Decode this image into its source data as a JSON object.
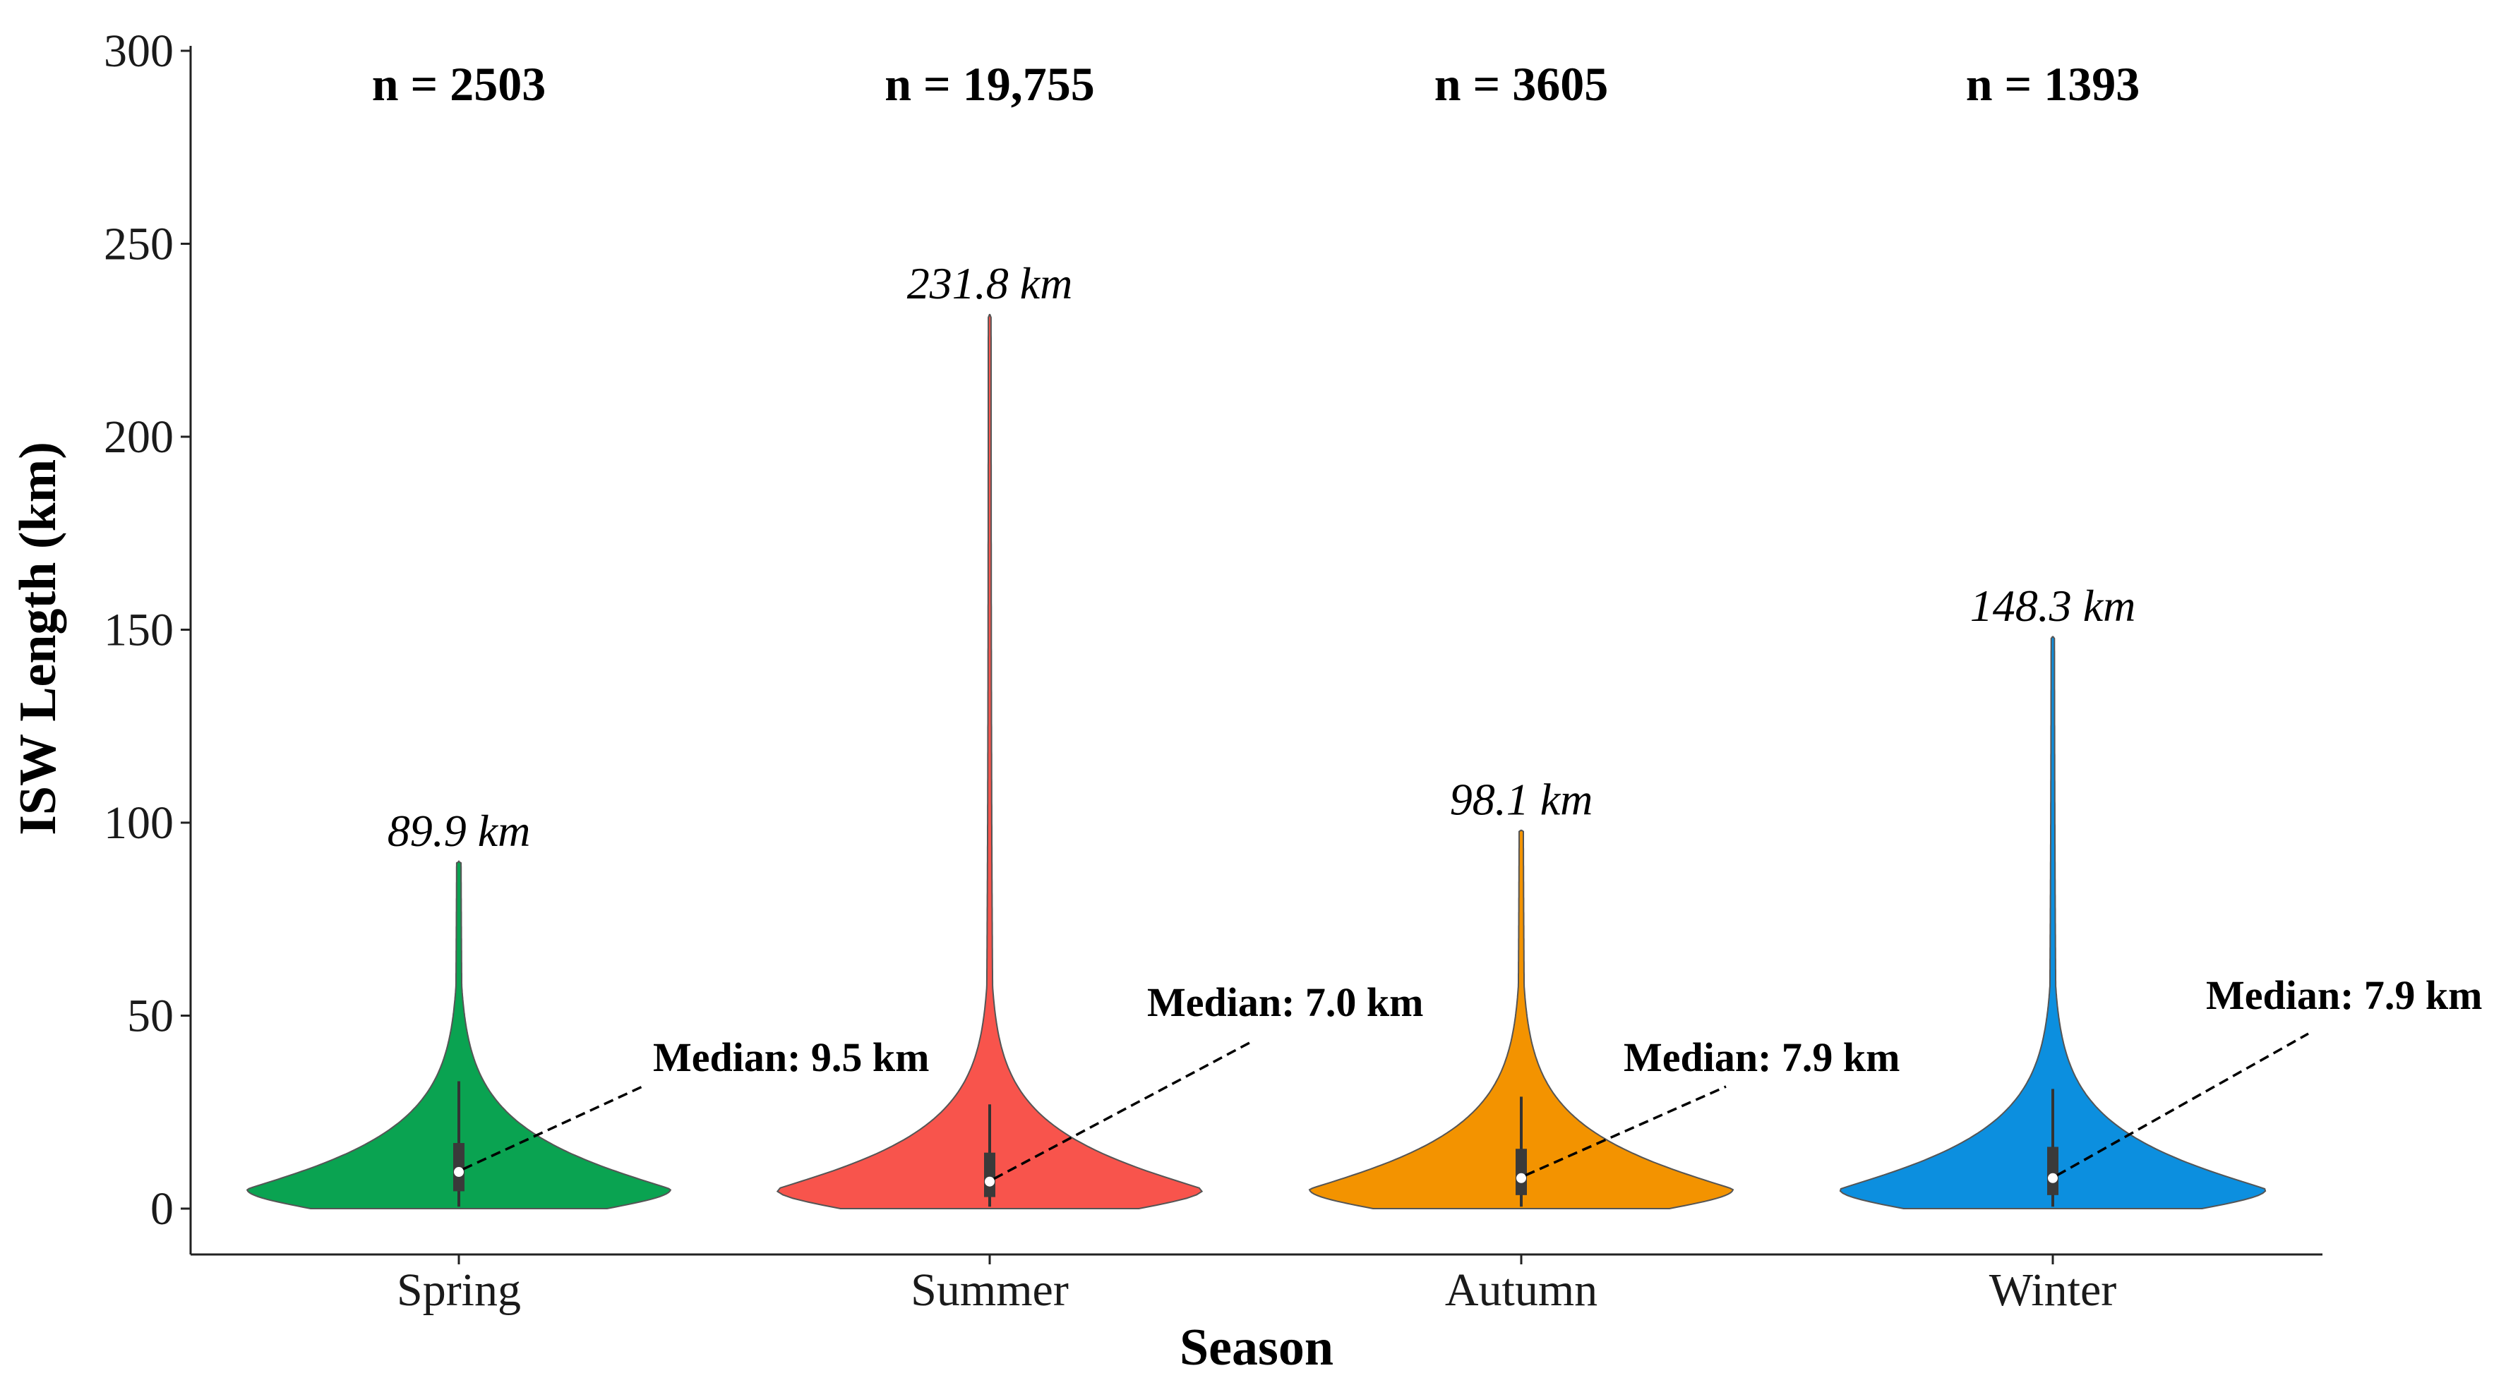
{
  "chart_data": {
    "type": "violin",
    "xlabel": "Season",
    "ylabel": "ISW Length (km)",
    "ylim": [
      0,
      300
    ],
    "yticks": [
      0,
      50,
      100,
      150,
      200,
      250,
      300
    ],
    "categories": [
      "Spring",
      "Summer",
      "Autumn",
      "Winter"
    ],
    "series": [
      {
        "category": "Spring",
        "color": "#0aa351",
        "n_label": "n = 2503",
        "max": 89.9,
        "max_label": "89.9 km",
        "median": 9.5,
        "median_label": "Median: 9.5 km",
        "q1": 4.5,
        "q3": 17.0,
        "whisker_low": 0.5,
        "whisker_high": 33.0
      },
      {
        "category": "Summer",
        "color": "#f8544c",
        "n_label": "n = 19,755",
        "max": 231.8,
        "max_label": "231.8 km",
        "median": 7.0,
        "median_label": "Median: 7.0 km",
        "q1": 3.0,
        "q3": 14.5,
        "whisker_low": 0.5,
        "whisker_high": 27.0
      },
      {
        "category": "Autumn",
        "color": "#f39300",
        "n_label": "n = 3605",
        "max": 98.1,
        "max_label": "98.1 km",
        "median": 7.9,
        "median_label": "Median: 7.9 km",
        "q1": 3.5,
        "q3": 15.5,
        "whisker_low": 0.5,
        "whisker_high": 29.0
      },
      {
        "category": "Winter",
        "color": "#0c8fdf",
        "n_label": "n = 1393",
        "max": 148.3,
        "max_label": "148.3 km",
        "median": 7.9,
        "median_label": "Median: 7.9 km",
        "q1": 3.5,
        "q3": 16.0,
        "whisker_low": 0.5,
        "whisker_high": 31.0
      }
    ],
    "grid": false,
    "legend": "none"
  }
}
